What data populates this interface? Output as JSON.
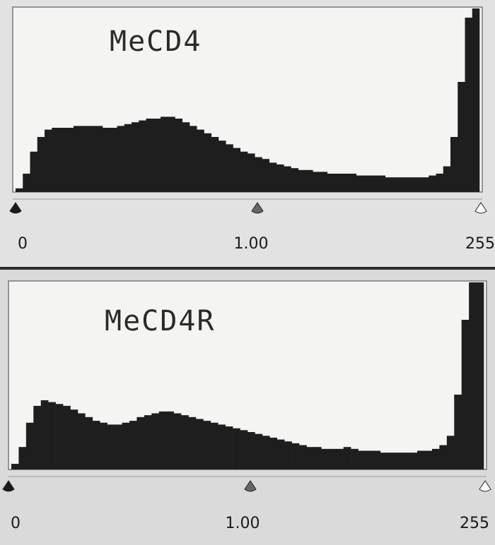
{
  "panels": [
    {
      "label": "MeCD4",
      "histogram": [
        2,
        10,
        22,
        30,
        34,
        35,
        35,
        35,
        36,
        36,
        36,
        36,
        35,
        35,
        36,
        37,
        38,
        39,
        40,
        40,
        41,
        41,
        40,
        38,
        36,
        34,
        32,
        30,
        28,
        26,
        24,
        22,
        21,
        19,
        18,
        16,
        15,
        14,
        13,
        12,
        12,
        11,
        11,
        10,
        10,
        10,
        10,
        9,
        9,
        9,
        9,
        8,
        8,
        8,
        8,
        8,
        8,
        9,
        10,
        14,
        30,
        60,
        95,
        100
      ],
      "input_labels": [
        "0",
        "1.00",
        "255"
      ]
    },
    {
      "label": "MeCD4R",
      "histogram": [
        3,
        12,
        25,
        34,
        37,
        36,
        35,
        34,
        32,
        30,
        28,
        26,
        25,
        24,
        24,
        25,
        26,
        28,
        29,
        30,
        31,
        31,
        30,
        29,
        28,
        27,
        26,
        25,
        24,
        23,
        22,
        21,
        20,
        19,
        18,
        17,
        16,
        15,
        14,
        13,
        12,
        12,
        11,
        11,
        11,
        12,
        11,
        10,
        10,
        10,
        9,
        9,
        9,
        9,
        9,
        10,
        10,
        11,
        13,
        18,
        40,
        80,
        100,
        100
      ],
      "input_labels": [
        "0",
        "1.00",
        "255"
      ]
    }
  ]
}
